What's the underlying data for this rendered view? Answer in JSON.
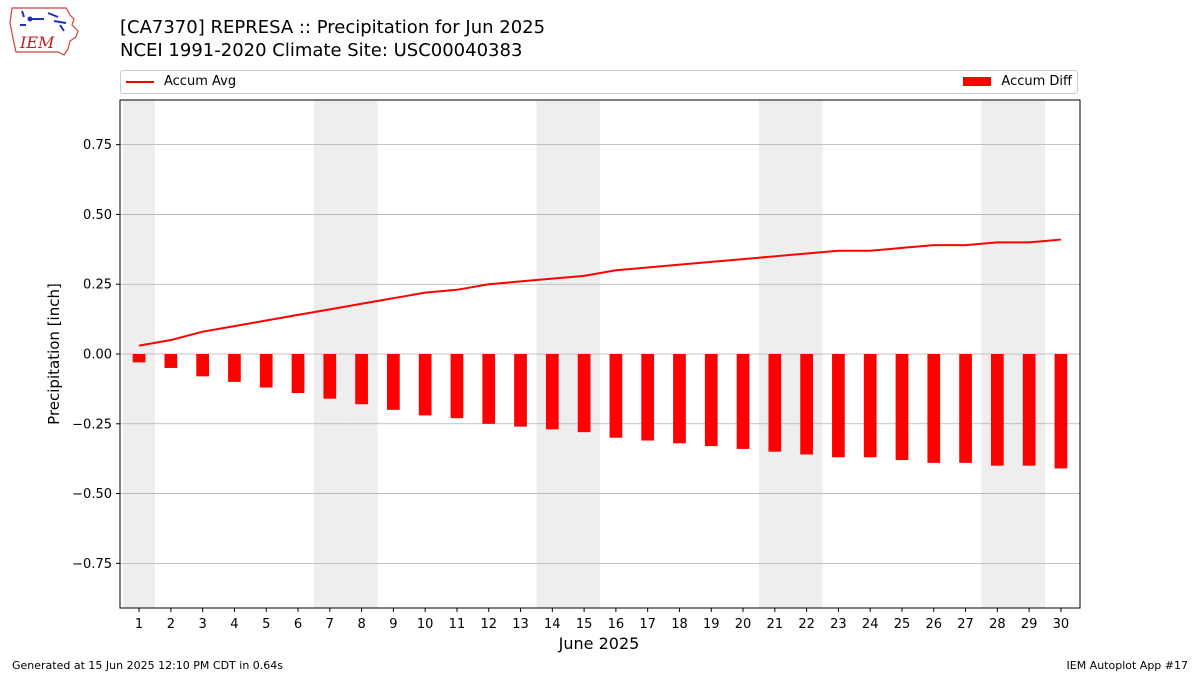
{
  "header": {
    "title_line1": "[CA7370] REPRESA :: Precipitation for Jun 2025",
    "title_line2": "NCEI 1991-2020 Climate Site: USC00040383"
  },
  "logo": {
    "text": "IEM",
    "icon": "iem-iowa-logo"
  },
  "footer": {
    "left": "Generated at 15 Jun 2025 12:10 PM CDT in 0.64s",
    "right": "IEM Autoplot App #17"
  },
  "colors": {
    "series": "#ff0000",
    "weekend_band": "#eeeeee",
    "grid": "#b0b0b0"
  },
  "chart_data": {
    "type": "bar",
    "xlabel": "June 2025",
    "ylabel": "Precipitation [inch]",
    "ylim": [
      -0.91,
      0.91
    ],
    "yticks": [
      -0.75,
      -0.5,
      -0.25,
      0.0,
      0.25,
      0.5,
      0.75
    ],
    "ytick_labels": [
      "−0.75",
      "−0.50",
      "−0.25",
      "0.00",
      "0.25",
      "0.50",
      "0.75"
    ],
    "grid": "horizontal",
    "legend_position": "top",
    "categories": [
      "1",
      "2",
      "3",
      "4",
      "5",
      "6",
      "7",
      "8",
      "9",
      "10",
      "11",
      "12",
      "13",
      "14",
      "15",
      "16",
      "17",
      "18",
      "19",
      "20",
      "21",
      "22",
      "23",
      "24",
      "25",
      "26",
      "27",
      "28",
      "29",
      "30"
    ],
    "weekend_days": [
      1,
      7,
      8,
      14,
      15,
      21,
      22,
      28,
      29
    ],
    "series": [
      {
        "name": "Accum Avg",
        "kind": "line",
        "values": [
          0.03,
          0.05,
          0.08,
          0.1,
          0.12,
          0.14,
          0.16,
          0.18,
          0.2,
          0.22,
          0.23,
          0.25,
          0.26,
          0.27,
          0.28,
          0.3,
          0.31,
          0.32,
          0.33,
          0.34,
          0.35,
          0.36,
          0.37,
          0.37,
          0.38,
          0.39,
          0.39,
          0.4,
          0.4,
          0.41
        ]
      },
      {
        "name": "Accum Diff",
        "kind": "bar",
        "values": [
          -0.03,
          -0.05,
          -0.08,
          -0.1,
          -0.12,
          -0.14,
          -0.16,
          -0.18,
          -0.2,
          -0.22,
          -0.23,
          -0.25,
          -0.26,
          -0.27,
          -0.28,
          -0.3,
          -0.31,
          -0.32,
          -0.33,
          -0.34,
          -0.35,
          -0.36,
          -0.37,
          -0.37,
          -0.38,
          -0.39,
          -0.39,
          -0.4,
          -0.4,
          -0.41
        ]
      }
    ]
  }
}
